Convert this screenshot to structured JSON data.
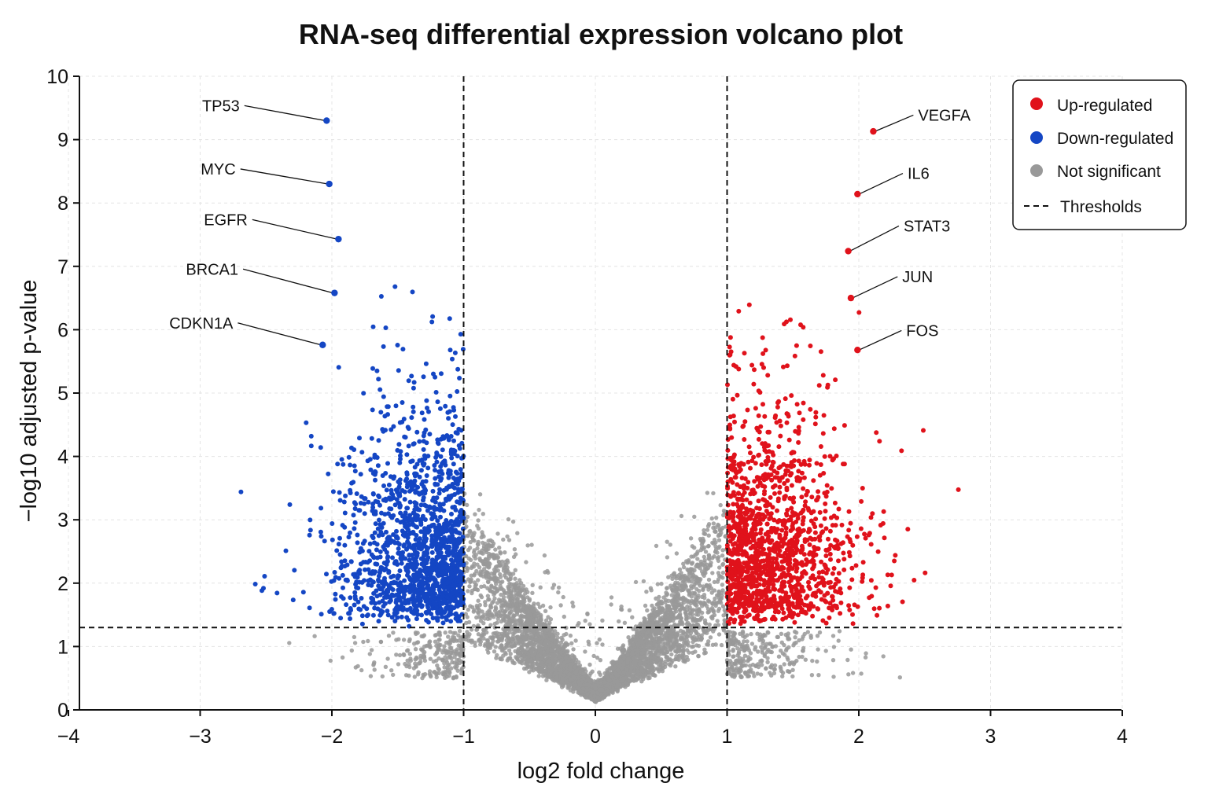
{
  "chart_data": {
    "type": "scatter",
    "title": "RNA-seq differential expression volcano plot",
    "xlabel": "log2 fold change",
    "ylabel": "−log10 adjusted p-value",
    "xlim": [
      -4,
      4
    ],
    "ylim": [
      0,
      10
    ],
    "x_ticks": [
      -4,
      -3,
      -2,
      -1,
      0,
      1,
      2,
      3,
      4
    ],
    "y_ticks": [
      0,
      1,
      2,
      3,
      4,
      5,
      6,
      7,
      8,
      9,
      10
    ],
    "x_tick_labels": [
      "−4",
      "−3",
      "−2",
      "−1",
      "0",
      "1",
      "2",
      "3",
      "4"
    ],
    "y_tick_labels": [
      "0",
      "1",
      "2",
      "3",
      "4",
      "5",
      "6",
      "7",
      "8",
      "9",
      "10"
    ],
    "grid": true,
    "legend_position": "top-right",
    "thresholds": {
      "log2fc": [
        -1,
        1
      ],
      "neg_log10_padj": 1.3
    },
    "colors": {
      "up": "#e0121b",
      "down": "#1446c4",
      "ns": "#999999",
      "threshold": "#111111"
    },
    "series": [
      {
        "name": "Up-regulated",
        "color": "#e0121b",
        "approx_count": 1400
      },
      {
        "name": "Down-regulated",
        "color": "#1446c4",
        "approx_count": 1500
      },
      {
        "name": "Not significant",
        "color": "#999999",
        "approx_count": 5000
      }
    ],
    "threshold_legend": "Thresholds",
    "labeled_genes": [
      {
        "gene": "TP53",
        "x": -2.04,
        "y": 9.3,
        "label_x": -2.7,
        "label_y": 9.45
      },
      {
        "gene": "MYC",
        "x": -2.02,
        "y": 8.3,
        "label_x": -2.73,
        "label_y": 8.45
      },
      {
        "gene": "EGFR",
        "x": -1.95,
        "y": 7.43,
        "label_x": -2.64,
        "label_y": 7.65
      },
      {
        "gene": "BRCA1",
        "x": -1.98,
        "y": 6.58,
        "label_x": -2.71,
        "label_y": 6.87
      },
      {
        "gene": "CDKN1A",
        "x": -2.07,
        "y": 5.76,
        "label_x": -2.75,
        "label_y": 6.02
      },
      {
        "gene": "VEGFA",
        "x": 2.11,
        "y": 9.13,
        "label_x": 2.45,
        "label_y": 9.3
      },
      {
        "gene": "IL6",
        "x": 1.99,
        "y": 8.14,
        "label_x": 2.37,
        "label_y": 8.38
      },
      {
        "gene": "STAT3",
        "x": 1.92,
        "y": 7.24,
        "label_x": 2.34,
        "label_y": 7.55
      },
      {
        "gene": "JUN",
        "x": 1.94,
        "y": 6.5,
        "label_x": 2.33,
        "label_y": 6.75
      },
      {
        "gene": "FOS",
        "x": 1.99,
        "y": 5.68,
        "label_x": 2.36,
        "label_y": 5.9
      }
    ]
  }
}
